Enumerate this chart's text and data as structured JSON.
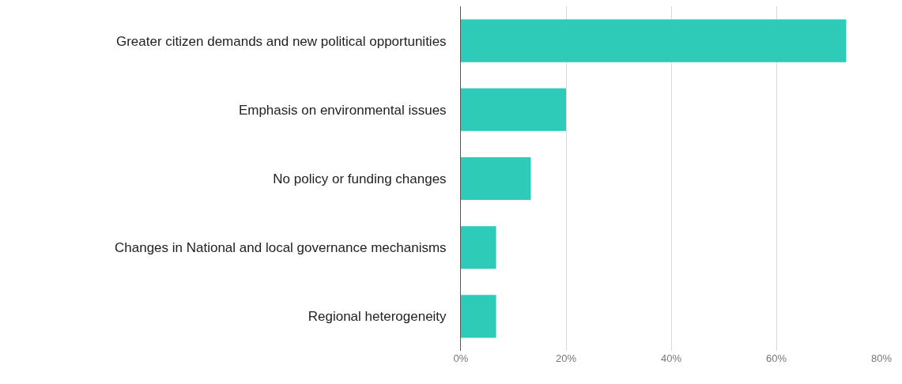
{
  "chart_data": {
    "type": "bar",
    "orientation": "horizontal",
    "categories": [
      "Greater citizen demands and new political opportunities",
      "Emphasis on environmental issues",
      "No policy or funding changes",
      "Changes in National and local governance mechanisms",
      "Regional heterogeneity"
    ],
    "values": [
      73.3,
      20,
      13.3,
      6.7,
      6.7
    ],
    "color": "#2ecbb9",
    "xlim": [
      0,
      80
    ],
    "xticks": [
      {
        "value": 0,
        "label": "0%"
      },
      {
        "value": 20,
        "label": "20%"
      },
      {
        "value": 40,
        "label": "40%"
      },
      {
        "value": 60,
        "label": "60%"
      },
      {
        "value": 80,
        "label": "80%"
      }
    ],
    "grid": "x"
  }
}
